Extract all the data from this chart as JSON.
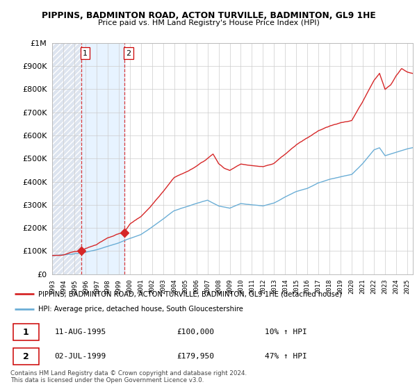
{
  "title": "PIPPINS, BADMINTON ROAD, ACTON TURVILLE, BADMINTON, GL9 1HE",
  "subtitle": "Price paid vs. HM Land Registry's House Price Index (HPI)",
  "yticks": [
    0,
    100000,
    200000,
    300000,
    400000,
    500000,
    600000,
    700000,
    800000,
    900000,
    1000000
  ],
  "ytick_labels": [
    "£0",
    "£100K",
    "£200K",
    "£300K",
    "£400K",
    "£500K",
    "£600K",
    "£700K",
    "£800K",
    "£900K",
    "£1M"
  ],
  "ylim": [
    0,
    1000000
  ],
  "xlim_start": 1993.0,
  "xlim_end": 2025.5,
  "xtick_years": [
    1993,
    1994,
    1995,
    1996,
    1997,
    1998,
    1999,
    2000,
    2001,
    2002,
    2003,
    2004,
    2005,
    2006,
    2007,
    2008,
    2009,
    2010,
    2011,
    2012,
    2013,
    2014,
    2015,
    2016,
    2017,
    2018,
    2019,
    2020,
    2021,
    2022,
    2023,
    2024,
    2025
  ],
  "hpi_color": "#6baed6",
  "price_color": "#d62728",
  "marker_color": "#d62728",
  "transaction1_x": 1995.6,
  "transaction1_y": 100000,
  "transaction1_label": "1",
  "transaction1_date": "11-AUG-1995",
  "transaction1_price": "£100,000",
  "transaction1_hpi": "10% ↑ HPI",
  "transaction2_x": 1999.5,
  "transaction2_y": 179950,
  "transaction2_label": "2",
  "transaction2_date": "02-JUL-1999",
  "transaction2_price": "£179,950",
  "transaction2_hpi": "47% ↑ HPI",
  "legend_line1": "PIPPINS, BADMINTON ROAD, ACTON TURVILLE, BADMINTON, GL9 1HE (detached house)",
  "legend_line2": "HPI: Average price, detached house, South Gloucestershire",
  "footer1": "Contains HM Land Registry data © Crown copyright and database right 2024.",
  "footer2": "This data is licensed under the Open Government Licence v3.0.",
  "background_color": "#ffffff",
  "grid_color": "#cccccc"
}
